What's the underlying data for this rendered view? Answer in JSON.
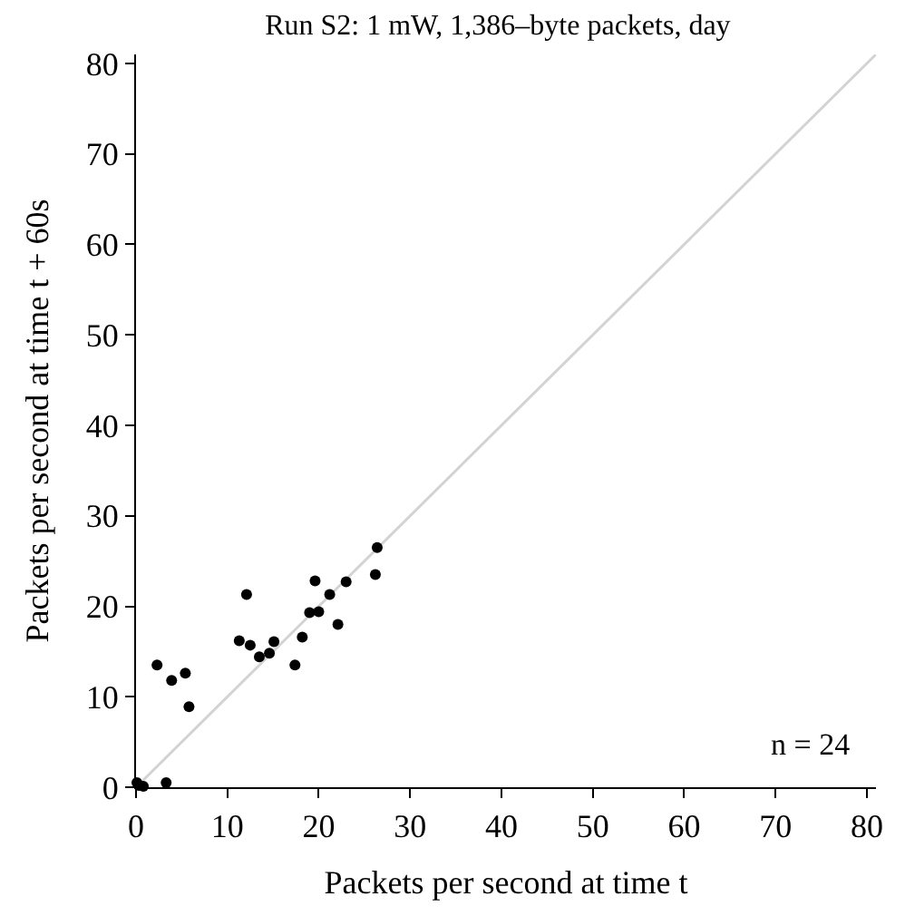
{
  "chart_data": {
    "type": "scatter",
    "title": "Run S2: 1 mW, 1,386–byte packets, day",
    "xlabel": "Packets per second at time t",
    "ylabel": "Packets per second at time t + 60s",
    "xlim": [
      0,
      81
    ],
    "ylim": [
      0,
      81
    ],
    "xticks": [
      0,
      10,
      20,
      30,
      40,
      50,
      60,
      70,
      80
    ],
    "yticks": [
      0,
      10,
      20,
      30,
      40,
      50,
      60,
      70,
      80
    ],
    "marker": "circle",
    "series": [
      {
        "color": "#000000",
        "x": [
          0.1,
          0.8,
          0.3,
          2.3,
          3.9,
          5.4,
          5.8,
          3.3,
          11.3,
          12.1,
          12.5,
          13.5,
          14.6,
          15.1,
          17.4,
          18.2,
          19.0,
          20.0,
          19.6,
          21.2,
          22.1,
          23.0,
          26.2,
          26.4
        ],
        "values": [
          0.5,
          0.1,
          0.2,
          13.5,
          11.8,
          12.6,
          8.9,
          0.5,
          16.2,
          21.3,
          15.7,
          14.4,
          14.8,
          16.1,
          13.5,
          16.6,
          19.3,
          19.4,
          22.8,
          21.3,
          18.0,
          22.7,
          23.5,
          26.5
        ]
      },
      {
        "type": "line",
        "marker": "none",
        "color": "#d3d3d3",
        "x": [
          0,
          81
        ],
        "values": [
          0,
          81
        ]
      }
    ],
    "annotations": [
      "n = 24"
    ]
  }
}
